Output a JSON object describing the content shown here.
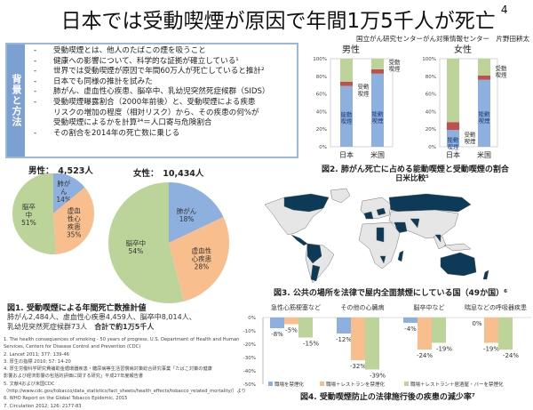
{
  "title": "日本では受動喫煙が原因で年間1万5千人が死亡",
  "title_ref": "4",
  "author": "国立がん研究センターがん対策情報センター　片野田耕太",
  "background": {
    "side_label": "背景と方法",
    "items": [
      "受動喫煙とは、他人のたばこの煙を吸うこと",
      "健康への影響について、科学的な証拠が確立している¹",
      "世界では受動喫煙が原因で年間60万人が死亡していると推計²",
      "日本でも同様の推計を試みた",
      "肺がん、虚血性心疾患、脳卒中、乳幼児突然死症候群（SIDS）",
      "受動喫煙曝露割合（2000年前後）と、受動喫煙による疾患",
      "リスクの増加の程度（相対リスク）から、その疾患の何%が",
      "受動喫煙によるかを計算³⁴＝人口寄与危険割合",
      "その割合を2014年の死亡数に乗じる"
    ]
  },
  "chart_data": [
    {
      "id": "fig1-male",
      "type": "pie",
      "title": "男性：　4,523人",
      "labels": [
        "肺がん",
        "虚血性心疾患",
        "脳卒中"
      ],
      "values": [
        14,
        35,
        51
      ],
      "colors": [
        "#8eb0df",
        "#f8be8e",
        "#bcd49a"
      ]
    },
    {
      "id": "fig1-female",
      "type": "pie",
      "title": "女性：　10,434人",
      "labels": [
        "肺がん",
        "虚血性心疾患",
        "脳卒中"
      ],
      "values": [
        18,
        28,
        54
      ],
      "colors": [
        "#8eb0df",
        "#f8be8e",
        "#bcd49a"
      ]
    },
    {
      "id": "fig2",
      "type": "bar",
      "stacked": true,
      "panels": [
        {
          "title": "男性",
          "categories": [
            "日本",
            "米国"
          ],
          "series": [
            {
              "name": "能動喫煙",
              "values": [
                69,
                83
              ]
            },
            {
              "name": "受動喫煙",
              "values": [
                5,
                5
              ]
            },
            {
              "name": "その他",
              "values": [
                26,
                12
              ]
            }
          ]
        },
        {
          "title": "女性",
          "categories": [
            "日本",
            "米国"
          ],
          "series": [
            {
              "name": "能動喫煙",
              "values": [
                19,
                76
              ]
            },
            {
              "name": "受動喫煙",
              "values": [
                9,
                5
              ]
            },
            {
              "name": "その他",
              "values": [
                72,
                19
              ]
            }
          ]
        }
      ],
      "yticks": [
        "0%",
        "20%",
        "40%",
        "60%",
        "80%",
        "100%"
      ],
      "ylim": [
        0,
        100
      ],
      "colors": [
        "#8eb0df",
        "#c0504d",
        "#bcd49a"
      ]
    },
    {
      "id": "fig4",
      "type": "bar",
      "categories": [
        "急性心筋梗塞など",
        "その他の心臓病",
        "脳卒中など",
        "喘息などの呼吸器疾患"
      ],
      "series": [
        {
          "name": "職場を禁煙化",
          "values": [
            -8,
            -12,
            -4,
            0
          ]
        },
        {
          "name": "職場＋レストランを禁煙化",
          "values": [
            -5,
            -32,
            -24,
            -19
          ]
        },
        {
          "name": "職場＋レストラン＋居酒屋・バーを禁煙化",
          "values": [
            -15,
            -39,
            -19,
            -24
          ]
        }
      ],
      "value_labels": [
        [
          "-8%",
          "-12%",
          "-4%",
          "0%"
        ],
        [
          "-5%",
          "-32%",
          "-24%",
          "-19%"
        ],
        [
          "-15%",
          "-39%",
          "-19%",
          "-24%"
        ]
      ],
      "yticks": [
        "0%",
        "-10%",
        "-20%",
        "-30%",
        "-40%",
        "-50%"
      ],
      "ylim": [
        -50,
        0
      ],
      "colors": [
        "#8eb0df",
        "#f8be8e",
        "#bcd49a"
      ],
      "legend": "bottom"
    }
  ],
  "fig1": {
    "caption": "図1. 受動喫煙による年間死亡数推計値",
    "line1": "肺がん2,484人、虚血性心疾患4,459人、脳卒中8,014人、",
    "line2": "乳幼児突然死症候群73人",
    "total": "合計で約1万5千人",
    "male_labels": [
      "肺が\nん\n14%",
      "虚血\n性心\n疾患\n35%",
      "脳卒\n中\n51%"
    ],
    "female_labels": [
      "肺がん\n18%",
      "虚血性\n心疾患\n28%",
      "脳卒中\n54%"
    ]
  },
  "fig2": {
    "caption1": "図2. 肺がん死亡に占める能動喫煙と受動喫煙の割合",
    "caption2": "日米比較⁵",
    "label_active": "能動\n喫煙",
    "label_passive": "受動\n喫煙"
  },
  "fig3": {
    "caption": "図3. 公共の場所を法律で屋内全面禁煙にしている国（49か国）⁶",
    "colors": {
      "ban": "#0d3b57",
      "other": "#e6e6e6"
    }
  },
  "fig4": {
    "caption": "図4. 受動喫煙防止の法律施行後の疾患の減少率⁷"
  },
  "references": [
    "1. The health consequences of smoking - 50 years of progress. U.S. Department of Health and Human",
    "    Services, Centers for Disease Control and Prevention (CDC)",
    "2. Lancet 2011; 377: 139-46",
    "3. 厚生の指標 2010; 57: 14-20",
    "4. 厚生労働科学研究費補助金循環器疾患・糖尿病等生活習慣病対策総合研究事業「たばこ対策の健康",
    "    影響および経済影響の包括的評価に関する研究」平成27年度報告書",
    "5. 文献4および米国CDC",
    "（http://www.cdc.gov/tobacco/data_statistics/fact_sheets/health_effects/tobacco_related_mortality/）より",
    "6. WHO Report on the Global Tobacco Epidemic, 2015",
    "7. Circulation 2012; 126: 2177-83"
  ]
}
